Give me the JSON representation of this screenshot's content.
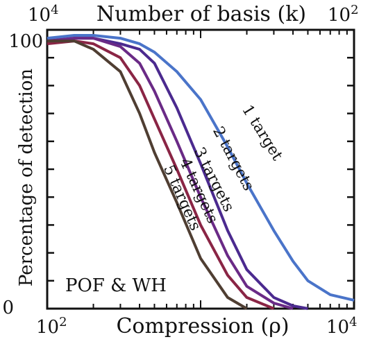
{
  "chart_data": {
    "type": "line",
    "top_axis": {
      "label": "Number of basis (k)",
      "tick_left": "10^4",
      "tick_right": "10^2"
    },
    "xlabel": "Compression (ρ)",
    "ylabel": "Percentage of detection",
    "x_scale": "log",
    "xlim": [
      100,
      10000
    ],
    "ylim": [
      0,
      100
    ],
    "x_ticks": [
      {
        "value": 100,
        "label": "10^2"
      },
      {
        "value": 10000,
        "label": "10^4"
      }
    ],
    "y_ticks": [
      {
        "value": 0,
        "label": "0"
      },
      {
        "value": 100,
        "label": "100"
      }
    ],
    "annotation": "POF & WH",
    "series": [
      {
        "name": "1 target",
        "color": "#4a74c9",
        "x": [
          100,
          150,
          200,
          300,
          400,
          500,
          700,
          1000,
          1500,
          2000,
          3000,
          4000,
          5000,
          7000,
          10000
        ],
        "y": [
          97,
          98,
          98,
          97,
          95,
          92,
          85,
          75,
          58,
          45,
          28,
          17,
          10,
          5,
          3
        ]
      },
      {
        "name": "2 targets",
        "color": "#4b2a8f",
        "x": [
          100,
          150,
          200,
          300,
          400,
          500,
          700,
          1000,
          1500,
          2000,
          3000,
          4000,
          5000
        ],
        "y": [
          96,
          97,
          97,
          95,
          93,
          88,
          72,
          52,
          28,
          14,
          4,
          1,
          0
        ]
      },
      {
        "name": "3 targets",
        "color": "#6a2a86",
        "x": [
          100,
          150,
          200,
          300,
          400,
          500,
          700,
          1000,
          1500,
          2000,
          3000,
          4000
        ],
        "y": [
          96,
          97,
          97,
          94,
          88,
          78,
          60,
          40,
          19,
          8,
          2,
          0
        ]
      },
      {
        "name": "4 targets",
        "color": "#8a2545",
        "x": [
          100,
          150,
          200,
          300,
          400,
          500,
          700,
          1000,
          1500,
          2000,
          3000
        ],
        "y": [
          95,
          96,
          95,
          90,
          80,
          68,
          50,
          30,
          12,
          4,
          0
        ]
      },
      {
        "name": "5 targets",
        "color": "#4f3e32",
        "x": [
          100,
          150,
          200,
          300,
          400,
          500,
          700,
          1000,
          1500,
          2000
        ],
        "y": [
          96,
          96,
          93,
          85,
          70,
          56,
          38,
          18,
          4,
          0
        ]
      }
    ]
  }
}
